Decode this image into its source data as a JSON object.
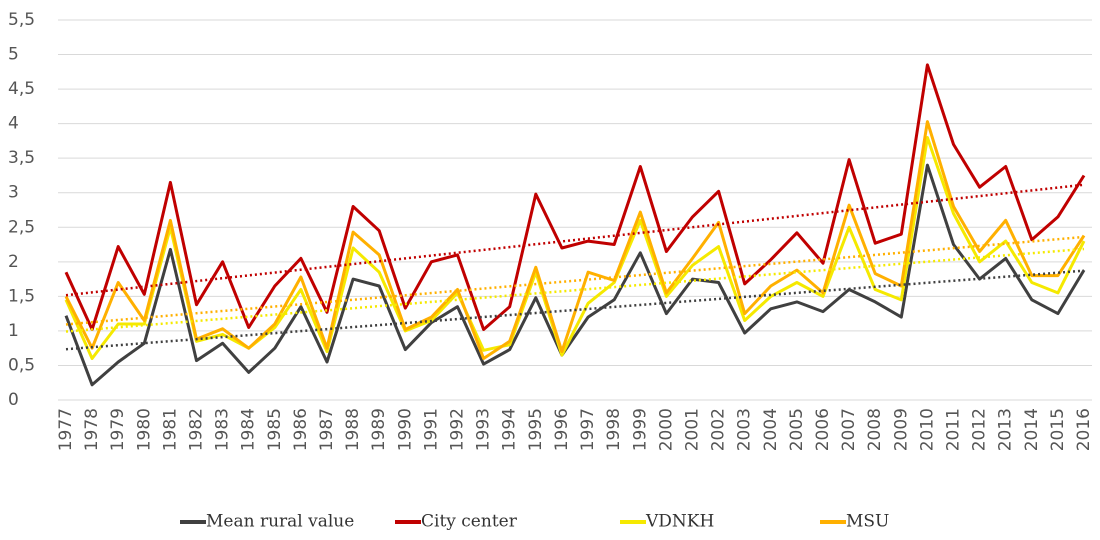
{
  "chart_data": {
    "type": "line",
    "categories": [
      "1977",
      "1978",
      "1979",
      "1980",
      "1981",
      "1982",
      "1983",
      "1984",
      "1985",
      "1986",
      "1987",
      "1988",
      "1989",
      "1990",
      "1991",
      "1992",
      "1993",
      "1994",
      "1995",
      "1996",
      "1997",
      "1998",
      "1999",
      "2000",
      "2001",
      "2002",
      "2003",
      "2004",
      "2005",
      "2006",
      "2007",
      "2008",
      "2009",
      "2010",
      "2011",
      "2012",
      "2013",
      "2014",
      "2015",
      "2016"
    ],
    "series": [
      {
        "name": "Mean rural value",
        "color": "#404040",
        "values": [
          1.22,
          0.22,
          0.55,
          0.82,
          2.18,
          0.57,
          0.82,
          0.4,
          0.75,
          1.35,
          0.55,
          1.75,
          1.65,
          0.73,
          1.12,
          1.35,
          0.52,
          0.73,
          1.48,
          0.65,
          1.2,
          1.45,
          2.13,
          1.25,
          1.75,
          1.7,
          0.97,
          1.32,
          1.42,
          1.28,
          1.6,
          1.42,
          1.2,
          3.4,
          2.25,
          1.75,
          2.05,
          1.45,
          1.25,
          1.88
        ]
      },
      {
        "name": "City center",
        "color": "#c00000",
        "values": [
          1.85,
          1.02,
          2.22,
          1.53,
          3.15,
          1.38,
          2.0,
          1.05,
          1.65,
          2.05,
          1.27,
          2.8,
          2.45,
          1.33,
          2.0,
          2.1,
          1.02,
          1.35,
          2.98,
          2.2,
          2.3,
          2.25,
          3.38,
          2.15,
          2.65,
          3.02,
          1.68,
          2.03,
          2.42,
          1.98,
          3.48,
          2.27,
          2.4,
          4.85,
          3.7,
          3.08,
          3.38,
          2.32,
          2.65,
          3.25
        ]
      },
      {
        "name": "VDNKH",
        "color": "#f5e900",
        "values": [
          1.45,
          0.6,
          1.1,
          1.1,
          2.5,
          0.85,
          0.95,
          0.75,
          1.05,
          1.6,
          0.7,
          2.2,
          1.85,
          1.0,
          1.15,
          1.55,
          0.72,
          0.8,
          1.85,
          0.65,
          1.4,
          1.7,
          2.6,
          1.5,
          1.95,
          2.22,
          1.15,
          1.5,
          1.7,
          1.5,
          2.5,
          1.6,
          1.45,
          3.8,
          2.7,
          2.0,
          2.3,
          1.7,
          1.55,
          2.3
        ]
      },
      {
        "name": "MSU",
        "color": "#ffb000",
        "values": [
          1.5,
          0.75,
          1.7,
          1.15,
          2.6,
          0.88,
          1.03,
          0.75,
          1.1,
          1.78,
          0.75,
          2.43,
          2.1,
          1.02,
          1.2,
          1.6,
          0.6,
          0.85,
          1.92,
          0.7,
          1.85,
          1.73,
          2.72,
          1.55,
          2.05,
          2.57,
          1.25,
          1.65,
          1.88,
          1.55,
          2.82,
          1.83,
          1.65,
          4.03,
          2.8,
          2.15,
          2.6,
          1.8,
          1.8,
          2.38
        ]
      }
    ],
    "ylim": [
      0,
      5.5
    ],
    "yticks": [
      0,
      {
        "value": 0.5,
        "label": "0,5"
      },
      1,
      {
        "value": 1.5,
        "label": "1,5"
      },
      2,
      {
        "value": 2.5,
        "label": "2,5"
      },
      3,
      {
        "value": 3.5,
        "label": "3,5"
      },
      4,
      {
        "value": 4.5,
        "label": "4,5"
      },
      5,
      {
        "value": 5.5,
        "label": "5,5"
      }
    ],
    "grid": true,
    "trendline": true,
    "legend": "bottom"
  }
}
